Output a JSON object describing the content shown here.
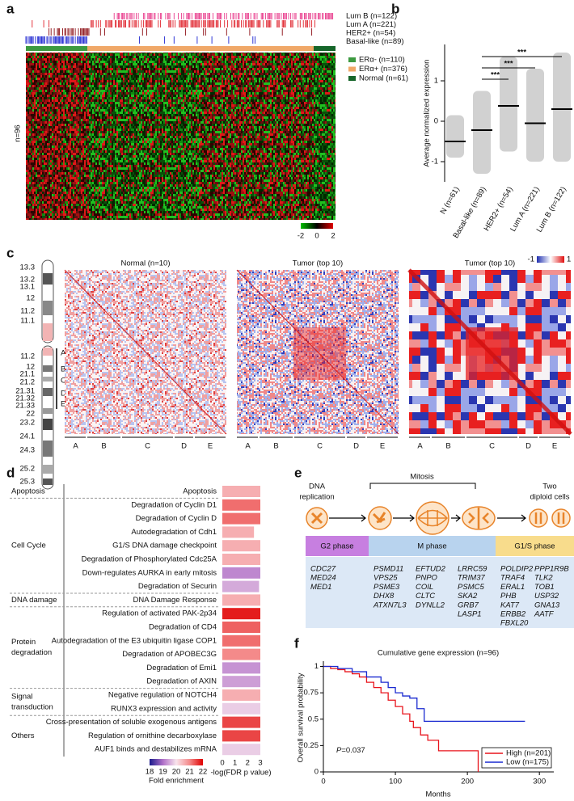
{
  "panel_labels": [
    "a",
    "b",
    "c",
    "d",
    "e",
    "f"
  ],
  "panel_a": {
    "subtype_legend": [
      {
        "name": "Lum B (n=122)",
        "color": "#e8388a"
      },
      {
        "name": "Lum A (n=221)",
        "color": "#e0202a"
      },
      {
        "name": "HER2+ (n=54)",
        "color": "#8a0a10"
      },
      {
        "name": "Basal-like (n=89)",
        "color": "#1a22d0"
      }
    ],
    "er_legend": [
      {
        "name": "ERα- (n=110)",
        "color": "#3c9a40"
      },
      {
        "name": "ERα+ (n=376)",
        "color": "#f0a868"
      },
      {
        "name": "Normal (n=61)",
        "color": "#16662a"
      }
    ],
    "row_label": "n=96",
    "colorbar": {
      "ticks": [
        -2,
        0,
        2
      ],
      "colors": [
        "#00c000",
        "#000000",
        "#e00000"
      ]
    }
  },
  "panel_c": {
    "chromosome_bands": [
      "13.3",
      "13.2",
      "13.1",
      "12",
      "11.2",
      "11.1",
      "11.2",
      "12",
      "21.1",
      "21.2",
      "21.31",
      "21.32",
      "21.33",
      "22",
      "23.2",
      "24.1",
      "24.3",
      "25.2",
      "25.3"
    ],
    "regions": [
      "A",
      "B",
      "C",
      "D",
      "E"
    ],
    "maps": [
      "Normal (n=10)",
      "Tumor (top 10)",
      "Tumor (top 10)"
    ],
    "colorbar": {
      "ticks": [
        -1,
        1
      ],
      "colors": [
        "#2030b0",
        "#ffffff",
        "#e01010"
      ]
    }
  },
  "panel_e": {
    "stages": [
      [
        "DNA",
        "replication"
      ],
      [
        "Two",
        "diploid cells"
      ]
    ],
    "mitosis": "Mitosis",
    "phases": [
      {
        "name": "G2 phase",
        "color": "#c77fe0",
        "genes": [
          [
            "CDC27",
            "MED24",
            "MED1"
          ]
        ]
      },
      {
        "name": "M phase",
        "color": "#b8d3ee",
        "genes": [
          [
            "PSMD11",
            "VPS25",
            "PSME3",
            "DHX8",
            "ATXN7L3"
          ],
          [
            "EFTUD2",
            "PNPO",
            "COIL",
            "CLTC",
            "DYNLL2"
          ],
          [
            "LRRC59",
            "TRIM37",
            "PSMC5",
            "SKA2",
            "GRB7",
            "LASP1"
          ]
        ]
      },
      {
        "name": "G1/S phase",
        "color": "#f8dc8c",
        "genes": [
          [
            "POLDIP2",
            "TRAF4",
            "ERAL1",
            "PHB",
            "KAT7",
            "ERBB2",
            "FBXL20"
          ],
          [
            "PPP1R9B",
            "TLK2",
            "TOB1",
            "USP32",
            "GNA13",
            "AATF"
          ]
        ]
      }
    ]
  },
  "chart_data": [
    {
      "type": "dot",
      "categories": [
        "N (n=61)",
        "Basal-like (n=89)",
        "HER2+ (n=54)",
        "Lum A (n=221)",
        "Lum B (n=122)"
      ],
      "values": [
        -0.5,
        -0.22,
        0.38,
        -0.05,
        0.3
      ],
      "range_low": [
        -0.9,
        -1.3,
        -0.75,
        -1.0,
        -1.0
      ],
      "range_high": [
        0.15,
        0.75,
        1.6,
        1.3,
        1.7
      ],
      "color": "#000000",
      "ylabel": "Average normalized expression",
      "ylim": [
        -1.5,
        1.9
      ],
      "yticks": [
        -1,
        0,
        1
      ],
      "significance": [
        "***",
        "***",
        "***"
      ]
    },
    {
      "type": "bar",
      "groups": [
        {
          "label": [
            "Apoptosis"
          ],
          "categories": [
            "Apoptosis"
          ],
          "values": [
            3.0
          ],
          "fold_enrichment": [
            20.6
          ]
        },
        {
          "label": [
            "Cell Cycle"
          ],
          "categories": [
            "Degradation of Cyclin D1",
            "Degradation of Cyclin D",
            "Autodegradation of Cdh1",
            "G1/S DNA damage checkpoint",
            "Degradation of Phosphorylated Cdc25A",
            "Down-regulates AURKA in early mitosis",
            "Degradation of Securin"
          ],
          "values": [
            3.0,
            3.0,
            2.5,
            3.0,
            3.0,
            3.0,
            2.9
          ],
          "fold_enrichment": [
            21.2,
            21.2,
            20.6,
            20.6,
            20.6,
            19.2,
            19.5
          ]
        },
        {
          "label": [
            "DNA damage"
          ],
          "categories": [
            "DNA Damage Response"
          ],
          "values": [
            3.0
          ],
          "fold_enrichment": [
            20.6
          ]
        },
        {
          "label": [
            "Protein",
            "degradation"
          ],
          "categories": [
            "Regulation of activated PAK-2p34",
            "Degradation of CD4",
            "Autodegradation of the E3 ubiquitin ligase COP1",
            "Degradation of APOBEC3G",
            "Degradation of Emi1",
            "Degradation of AXIN"
          ],
          "values": [
            3.0,
            3.0,
            3.0,
            3.0,
            3.0,
            3.0
          ],
          "fold_enrichment": [
            21.8,
            21.3,
            21.2,
            21.0,
            19.3,
            19.4
          ]
        },
        {
          "label": [
            "Signal",
            "transduction"
          ],
          "categories": [
            "Negative regulation of NOTCH4",
            "RUNX3 expression and activity"
          ],
          "values": [
            3.0,
            3.0
          ],
          "fold_enrichment": [
            20.6,
            19.8
          ]
        },
        {
          "label": [
            "Others"
          ],
          "categories": [
            "Cross-presentation of soluble exogenous antigens",
            "Regulation of ornithine decarboxylase",
            "AUF1 binds and destabilizes mRNA"
          ],
          "values": [
            3.0,
            3.0,
            3.0
          ],
          "fold_enrichment": [
            21.5,
            21.5,
            19.8
          ]
        }
      ],
      "xlabel": "-log(FDR p value)",
      "xlim": [
        0,
        3
      ],
      "xticks": [
        0,
        1,
        2,
        3
      ],
      "colorbar": {
        "label": "Fold enrichment",
        "clim": [
          18,
          22
        ],
        "ticks": [
          18,
          19,
          20,
          21,
          22
        ],
        "colors": [
          "#1a1a8c",
          "#b070c8",
          "#f8e4ec",
          "#f48a8a",
          "#e00000"
        ]
      }
    },
    {
      "type": "line",
      "title": "Cumulative gene expression (n=96)",
      "xlabel": "Months",
      "ylabel": "Overall survival probability",
      "xlim": [
        0,
        320
      ],
      "xticks": [
        0,
        100,
        200,
        300
      ],
      "ylim": [
        0,
        1.05
      ],
      "yticks": [
        0,
        0.25,
        0.5,
        0.75,
        1
      ],
      "series": [
        {
          "name": "High (n=201)",
          "color": "#e8141c",
          "x": [
            0,
            10,
            20,
            30,
            40,
            50,
            60,
            70,
            80,
            90,
            100,
            110,
            120,
            125,
            135,
            145,
            160,
            215,
            215
          ],
          "values": [
            1,
            0.98,
            0.97,
            0.95,
            0.93,
            0.9,
            0.85,
            0.8,
            0.75,
            0.68,
            0.62,
            0.55,
            0.48,
            0.42,
            0.35,
            0.3,
            0.2,
            0.2,
            0
          ]
        },
        {
          "name": "Low (n=175)",
          "color": "#1a2ad0",
          "x": [
            0,
            20,
            40,
            60,
            80,
            90,
            100,
            110,
            120,
            130,
            140,
            280
          ],
          "values": [
            1,
            0.98,
            0.95,
            0.9,
            0.85,
            0.8,
            0.75,
            0.72,
            0.7,
            0.6,
            0.48,
            0.48
          ]
        }
      ],
      "annotation": {
        "symbol": "P",
        "text": "=0.037"
      }
    }
  ]
}
